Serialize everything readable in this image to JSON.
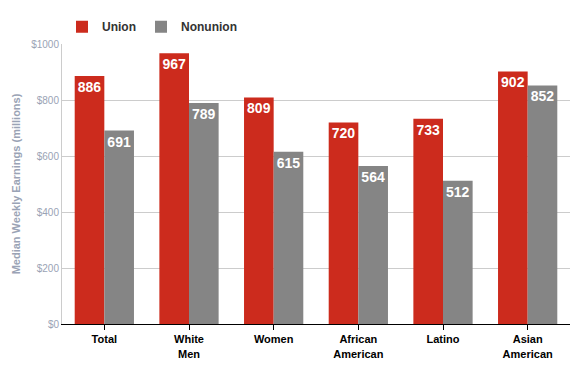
{
  "chart_data": {
    "type": "bar",
    "categories": [
      "Total",
      "White Men",
      "Women",
      "African American",
      "Latino",
      "Asian American"
    ],
    "series": [
      {
        "name": "Union",
        "color": "#cc2b1d",
        "values": [
          886,
          967,
          809,
          720,
          733,
          902
        ]
      },
      {
        "name": "Nonunion",
        "color": "#858585",
        "values": [
          691,
          789,
          615,
          564,
          512,
          852
        ]
      }
    ],
    "y_label": "Median Weekly Earnings (millions)",
    "ylim": [
      0,
      1000
    ],
    "yticks": [
      {
        "value": 0,
        "label": "$0"
      },
      {
        "value": 200,
        "label": "$200"
      },
      {
        "value": 400,
        "label": "$400"
      },
      {
        "value": 600,
        "label": "$600"
      },
      {
        "value": 800,
        "label": "$800"
      },
      {
        "value": 1000,
        "label": "$1000"
      }
    ],
    "grid": true,
    "legend": "top left",
    "data_labels": true
  }
}
